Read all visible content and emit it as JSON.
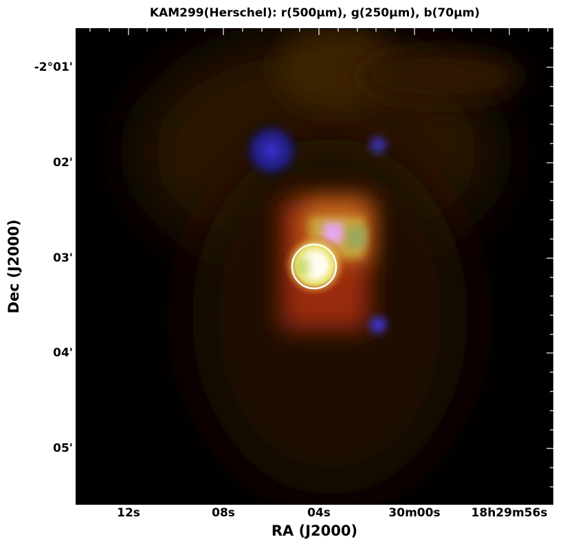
{
  "figure": {
    "title": "KAM299(Herschel): r(500μm), g(250μm), b(70μm)",
    "xlabel": "RA (J2000)",
    "ylabel": "Dec (J2000)",
    "yticks": [
      "-2°01'",
      "02'",
      "03'",
      "04'",
      "05'"
    ],
    "xticks": [
      "12s",
      "08s",
      "04s",
      "30m00s",
      "18h29m56s"
    ]
  },
  "image": {
    "type": "false-color composite",
    "channels": {
      "red": "500μm",
      "green": "250μm",
      "blue": "70μm"
    },
    "background_color": "#020100",
    "marker": {
      "shape": "circle",
      "color": "#ffffff"
    }
  }
}
